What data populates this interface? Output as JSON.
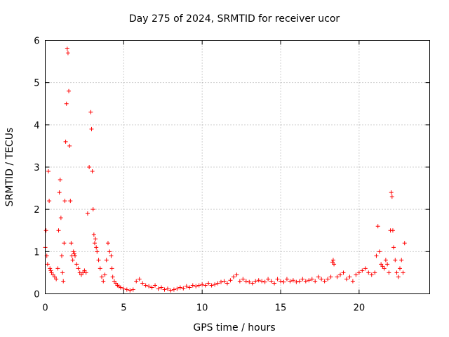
{
  "chart_data": {
    "type": "scatter",
    "title": "Day 275 of 2024, SRMTID for receiver ucor",
    "xlabel": "GPS time / hours",
    "ylabel": "SRMTID / TECUs",
    "xlim": [
      0,
      24.5
    ],
    "ylim": [
      0,
      6
    ],
    "xticks": [
      0,
      5,
      10,
      15,
      20
    ],
    "yticks": [
      0,
      1,
      2,
      3,
      4,
      5,
      6
    ],
    "grid": true,
    "marker": "+",
    "color": "#ff0000",
    "series": [
      {
        "name": "SRMTID",
        "x": [
          0.0,
          0.05,
          0.1,
          0.15,
          0.2,
          0.25,
          0.3,
          0.35,
          0.4,
          0.5,
          0.6,
          0.7,
          0.8,
          0.85,
          0.9,
          0.95,
          1.0,
          1.05,
          1.1,
          1.15,
          1.2,
          1.25,
          1.3,
          1.35,
          1.4,
          1.45,
          1.5,
          1.55,
          1.6,
          1.65,
          1.7,
          1.75,
          1.8,
          1.85,
          1.9,
          2.0,
          2.1,
          2.2,
          2.3,
          2.4,
          2.5,
          2.6,
          2.7,
          2.8,
          2.9,
          2.95,
          3.0,
          3.05,
          3.1,
          3.15,
          3.2,
          3.25,
          3.3,
          3.4,
          3.5,
          3.6,
          3.7,
          3.8,
          3.9,
          4.0,
          4.1,
          4.2,
          4.25,
          4.3,
          4.4,
          4.5,
          4.6,
          4.7,
          4.8,
          5.0,
          5.2,
          5.4,
          5.6,
          5.8,
          6.0,
          6.2,
          6.4,
          6.6,
          6.8,
          7.0,
          7.2,
          7.4,
          7.6,
          7.8,
          8.0,
          8.2,
          8.4,
          8.6,
          8.8,
          9.0,
          9.2,
          9.4,
          9.6,
          9.8,
          10.0,
          10.2,
          10.4,
          10.6,
          10.8,
          11.0,
          11.2,
          11.4,
          11.6,
          11.8,
          12.0,
          12.2,
          12.4,
          12.6,
          12.8,
          13.0,
          13.2,
          13.4,
          13.6,
          13.8,
          14.0,
          14.2,
          14.4,
          14.6,
          14.8,
          15.0,
          15.2,
          15.4,
          15.6,
          15.8,
          16.0,
          16.2,
          16.4,
          16.6,
          16.8,
          17.0,
          17.2,
          17.4,
          17.6,
          17.8,
          18.0,
          18.2,
          18.3,
          18.35,
          18.4,
          18.6,
          18.8,
          19.0,
          19.2,
          19.4,
          19.6,
          19.8,
          20.0,
          20.2,
          20.4,
          20.6,
          20.8,
          21.0,
          21.1,
          21.2,
          21.3,
          21.4,
          21.5,
          21.6,
          21.7,
          21.8,
          21.9,
          22.0,
          22.05,
          22.1,
          22.15,
          22.2,
          22.3,
          22.4,
          22.5,
          22.6,
          22.7,
          22.8,
          22.9
        ],
        "y": [
          1.1,
          1.5,
          0.9,
          0.7,
          2.9,
          2.2,
          0.6,
          0.55,
          0.5,
          0.45,
          0.4,
          0.35,
          0.6,
          1.5,
          2.4,
          2.7,
          1.8,
          0.9,
          0.5,
          0.3,
          1.2,
          2.2,
          3.6,
          4.5,
          5.8,
          5.7,
          4.8,
          3.5,
          2.2,
          1.2,
          0.9,
          0.8,
          1.0,
          0.95,
          0.9,
          0.7,
          0.6,
          0.5,
          0.45,
          0.5,
          0.55,
          0.5,
          1.9,
          3.0,
          4.3,
          3.9,
          2.9,
          2.0,
          1.4,
          1.2,
          1.3,
          1.1,
          1.0,
          0.8,
          0.6,
          0.4,
          0.3,
          0.45,
          0.8,
          1.2,
          1.0,
          0.9,
          0.6,
          0.4,
          0.3,
          0.25,
          0.2,
          0.18,
          0.15,
          0.12,
          0.1,
          0.08,
          0.1,
          0.3,
          0.35,
          0.25,
          0.2,
          0.18,
          0.15,
          0.2,
          0.12,
          0.15,
          0.1,
          0.12,
          0.08,
          0.1,
          0.12,
          0.15,
          0.13,
          0.18,
          0.15,
          0.2,
          0.18,
          0.2,
          0.22,
          0.2,
          0.25,
          0.2,
          0.22,
          0.25,
          0.28,
          0.3,
          0.25,
          0.32,
          0.4,
          0.45,
          0.3,
          0.35,
          0.3,
          0.28,
          0.25,
          0.3,
          0.32,
          0.3,
          0.28,
          0.35,
          0.3,
          0.25,
          0.35,
          0.3,
          0.28,
          0.35,
          0.3,
          0.32,
          0.28,
          0.3,
          0.35,
          0.3,
          0.32,
          0.35,
          0.3,
          0.4,
          0.35,
          0.3,
          0.35,
          0.4,
          0.75,
          0.8,
          0.7,
          0.4,
          0.45,
          0.5,
          0.35,
          0.4,
          0.3,
          0.45,
          0.5,
          0.55,
          0.6,
          0.5,
          0.45,
          0.5,
          0.9,
          1.6,
          1.0,
          0.7,
          0.65,
          0.6,
          0.8,
          0.7,
          0.5,
          1.5,
          2.4,
          2.3,
          1.5,
          1.1,
          0.8,
          0.5,
          0.4,
          0.6,
          0.8,
          0.5,
          1.2
        ]
      }
    ]
  }
}
